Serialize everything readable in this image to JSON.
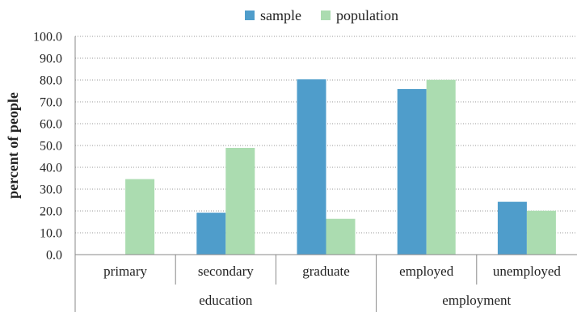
{
  "chart_data": {
    "type": "bar",
    "title": "",
    "xlabel": "",
    "ylabel": "percent of people",
    "ylim": [
      0,
      100
    ],
    "yticks": [
      "0.0",
      "10.0",
      "20.0",
      "30.0",
      "40.0",
      "50.0",
      "60.0",
      "70.0",
      "80.0",
      "90.0",
      "100.0"
    ],
    "grid": "horizontal-dotted",
    "legend": "top-center",
    "categories": [
      "primary",
      "secondary",
      "graduate",
      "employed",
      "unemployed"
    ],
    "groups": [
      {
        "label": "education",
        "categories": [
          "primary",
          "secondary",
          "graduate"
        ]
      },
      {
        "label": "employment",
        "categories": [
          "employed",
          "unemployed"
        ]
      }
    ],
    "series": [
      {
        "name": "sample",
        "color": "#4f9dcb",
        "values": [
          0,
          19.2,
          80.3,
          75.9,
          24.2
        ]
      },
      {
        "name": "population",
        "color": "#abdcb0",
        "values": [
          34.6,
          48.9,
          16.4,
          80.1,
          20.1
        ]
      }
    ]
  }
}
